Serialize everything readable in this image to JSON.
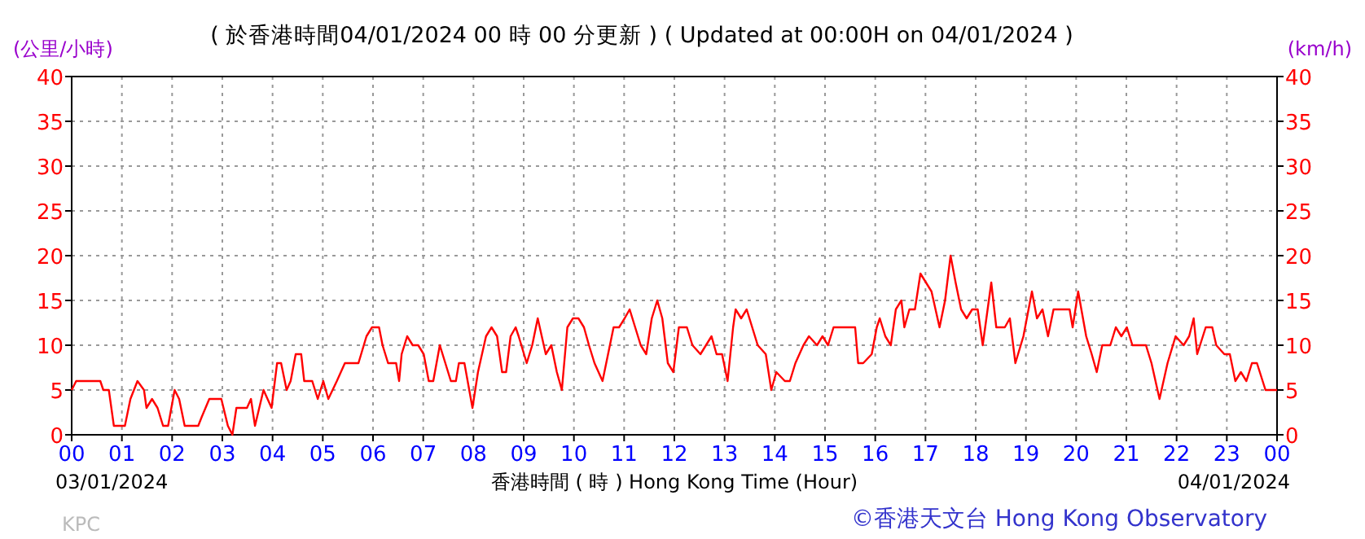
{
  "chart_data": {
    "type": "line",
    "title": "( 於香港時間04/01/2024 00 時 00 分更新 ) ( Updated at 00:00H on 04/01/2024 )",
    "xlabel": "香港時間 ( 時 ) Hong Kong Time (Hour)",
    "ylabel": "(公里/小時)",
    "y2label": "(km/h)",
    "annotations": [
      "03/01/2024",
      "04/01/2024",
      "KPC",
      "©香港天文台 Hong Kong Observatory"
    ],
    "xlim": [
      0,
      24
    ],
    "xticks": [
      {
        "value": 0,
        "label": "00"
      },
      {
        "value": 1,
        "label": "01"
      },
      {
        "value": 2,
        "label": "02"
      },
      {
        "value": 3,
        "label": "03"
      },
      {
        "value": 4,
        "label": "04"
      },
      {
        "value": 5,
        "label": "05"
      },
      {
        "value": 6,
        "label": "06"
      },
      {
        "value": 7,
        "label": "07"
      },
      {
        "value": 8,
        "label": "08"
      },
      {
        "value": 9,
        "label": "09"
      },
      {
        "value": 10,
        "label": "10"
      },
      {
        "value": 11,
        "label": "11"
      },
      {
        "value": 12,
        "label": "12"
      },
      {
        "value": 13,
        "label": "13"
      },
      {
        "value": 14,
        "label": "14"
      },
      {
        "value": 15,
        "label": "15"
      },
      {
        "value": 16,
        "label": "16"
      },
      {
        "value": 17,
        "label": "17"
      },
      {
        "value": 18,
        "label": "18"
      },
      {
        "value": 19,
        "label": "19"
      },
      {
        "value": 20,
        "label": "20"
      },
      {
        "value": 21,
        "label": "21"
      },
      {
        "value": 22,
        "label": "22"
      },
      {
        "value": 23,
        "label": "23"
      },
      {
        "value": 24,
        "label": "00"
      }
    ],
    "ylim": [
      0,
      40
    ],
    "yticks": [
      0,
      5,
      10,
      15,
      20,
      25,
      30,
      35,
      40
    ],
    "y2lim": [
      0,
      40
    ],
    "y2ticks": [
      0,
      5,
      10,
      15,
      20,
      25,
      30,
      35,
      40
    ],
    "grid": true,
    "series": [
      {
        "color": "#ff0000",
        "x": [
          0,
          0.09,
          0.57,
          0.63,
          0.74,
          0.84,
          1.06,
          1.17,
          1.31,
          1.44,
          1.49,
          1.6,
          1.71,
          1.82,
          1.92,
          2.05,
          2.14,
          2.25,
          2.52,
          2.59,
          2.74,
          2.98,
          3.11,
          3.2,
          3.28,
          3.49,
          3.57,
          3.65,
          3.82,
          3.98,
          4.09,
          4.17,
          4.28,
          4.36,
          4.46,
          4.57,
          4.63,
          4.79,
          4.9,
          5.01,
          5.11,
          5.28,
          5.44,
          5.71,
          5.87,
          5.98,
          6.12,
          6.19,
          6.3,
          6.46,
          6.52,
          6.57,
          6.68,
          6.79,
          6.9,
          7.01,
          7.11,
          7.2,
          7.33,
          7.44,
          7.55,
          7.65,
          7.71,
          7.82,
          7.98,
          8.09,
          8.25,
          8.36,
          8.47,
          8.57,
          8.65,
          8.74,
          8.84,
          8.9,
          9.06,
          9.17,
          9.28,
          9.36,
          9.44,
          9.55,
          9.66,
          9.76,
          9.87,
          9.98,
          10.09,
          10.2,
          10.3,
          10.41,
          10.57,
          10.68,
          10.79,
          10.9,
          11.01,
          11.11,
          11.22,
          11.33,
          11.44,
          11.55,
          11.66,
          11.76,
          11.87,
          11.98,
          12.09,
          12.25,
          12.36,
          12.52,
          12.63,
          12.74,
          12.84,
          12.95,
          13.06,
          13.17,
          13.22,
          13.33,
          13.44,
          13.55,
          13.66,
          13.82,
          13.93,
          14.03,
          14.2,
          14.3,
          14.41,
          14.57,
          14.68,
          14.84,
          14.95,
          15.06,
          15.17,
          15.33,
          15.6,
          15.66,
          15.76,
          15.93,
          16.03,
          16.09,
          16.2,
          16.31,
          16.41,
          16.52,
          16.58,
          16.68,
          16.79,
          16.9,
          17.01,
          17.12,
          17.28,
          17.39,
          17.5,
          17.6,
          17.71,
          17.82,
          17.93,
          18.04,
          18.14,
          18.31,
          18.41,
          18.58,
          18.68,
          18.79,
          18.95,
          19.12,
          19.22,
          19.33,
          19.44,
          19.55,
          19.87,
          19.93,
          20.04,
          20.2,
          20.31,
          20.41,
          20.52,
          20.68,
          20.79,
          20.9,
          21.01,
          21.12,
          21.39,
          21.5,
          21.66,
          21.82,
          21.98,
          22.14,
          22.25,
          22.34,
          22.41,
          22.58,
          22.71,
          22.79,
          22.95,
          23.06,
          23.17,
          23.28,
          23.39,
          23.5,
          23.6,
          23.77,
          23.87,
          24
        ],
        "values": [
          5,
          6,
          6,
          5,
          5,
          1,
          1,
          4,
          6,
          5,
          3,
          4,
          3,
          1,
          1,
          5,
          4,
          1,
          1,
          2,
          4,
          4,
          1,
          0,
          3,
          3,
          4,
          1,
          5,
          3,
          8,
          8,
          5,
          6,
          9,
          9,
          6,
          6,
          4,
          6,
          4,
          6,
          8,
          8,
          11,
          12,
          12,
          10,
          8,
          8,
          6,
          9,
          11,
          10,
          10,
          9,
          6,
          6,
          10,
          8,
          6,
          6,
          8,
          8,
          3,
          7,
          11,
          12,
          11,
          7,
          7,
          11,
          12,
          11,
          8,
          10,
          13,
          11,
          9,
          10,
          7,
          5,
          12,
          13,
          13,
          12,
          10,
          8,
          6,
          9,
          12,
          12,
          13,
          14,
          12,
          10,
          9,
          13,
          15,
          13,
          8,
          7,
          12,
          12,
          10,
          9,
          10,
          11,
          9,
          9,
          6,
          12,
          14,
          13,
          14,
          12,
          10,
          9,
          5,
          7,
          6,
          6,
          8,
          10,
          11,
          10,
          11,
          10,
          12,
          12,
          12,
          8,
          8,
          9,
          12,
          13,
          11,
          10,
          14,
          15,
          12,
          14,
          14,
          18,
          17,
          16,
          12,
          15,
          20,
          17,
          14,
          13,
          14,
          14,
          10,
          17,
          12,
          12,
          13,
          8,
          11,
          16,
          13,
          14,
          11,
          14,
          14,
          12,
          16,
          11,
          9,
          7,
          10,
          10,
          12,
          11,
          12,
          10,
          10,
          8,
          4,
          8,
          11,
          10,
          11,
          13,
          9,
          12,
          12,
          10,
          9,
          9,
          6,
          7,
          6,
          8,
          8,
          5,
          5,
          5
        ]
      }
    ]
  }
}
